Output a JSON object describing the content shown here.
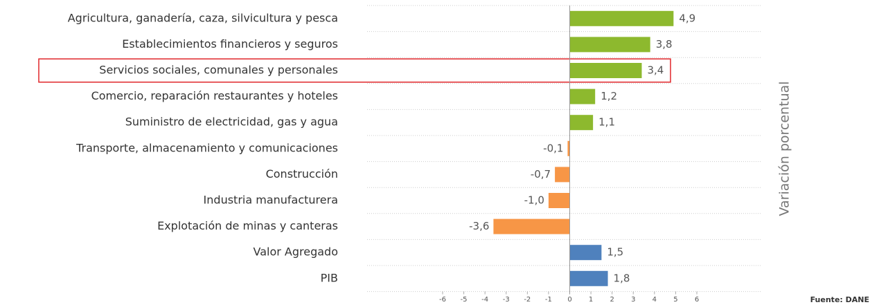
{
  "chart_data": {
    "type": "bar",
    "orientation": "horizontal",
    "categories": [
      "Agricultura, ganadería, caza, silvicultura y pesca",
      "Establecimientos financieros y seguros",
      "Servicios sociales, comunales y personales",
      "Comercio, reparación restaurantes y hoteles",
      "Suministro de electricidad, gas y agua",
      "Transporte, almacenamiento y comunicaciones",
      "Construcción",
      "Industria manufacturera",
      "Explotación de minas y canteras",
      "Valor Agregado",
      "PIB"
    ],
    "values": [
      4.9,
      3.8,
      3.4,
      1.2,
      1.1,
      -0.1,
      -0.7,
      -1.0,
      -3.6,
      1.5,
      1.8
    ],
    "value_labels": [
      "4,9",
      "3,8",
      "3,4",
      "1,2",
      "1,1",
      "-0,1",
      "-0,7",
      "-1,0",
      "-3,6",
      "1,5",
      "1,8"
    ],
    "colors": [
      "#8db92e",
      "#8db92e",
      "#8db92e",
      "#8db92e",
      "#8db92e",
      "#f79646",
      "#f79646",
      "#f79646",
      "#f79646",
      "#4f81bd",
      "#4f81bd"
    ],
    "xlim": [
      -6,
      6
    ],
    "xticks": [
      -6,
      -5,
      -4,
      -3,
      -2,
      -1,
      0,
      1,
      2,
      3,
      4,
      5,
      6
    ],
    "y_axis_label": "Variación porcentual",
    "source": "Fuente: DANE",
    "highlight": 2
  }
}
